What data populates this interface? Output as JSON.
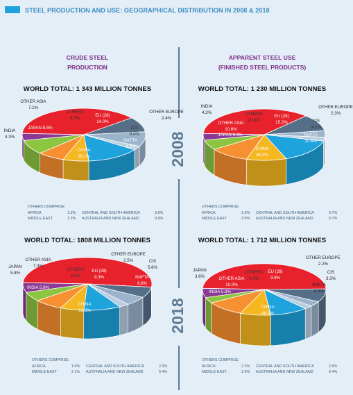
{
  "header": {
    "title": "STEEL PRODUCTION AND USE: GEOGRAPHICAL DISTRIBUTION IN 2008 & 2018"
  },
  "columns": {
    "crude": {
      "title_line1": "CRUDE STEEL",
      "title_line2": "PRODUCTION"
    },
    "use": {
      "title_line1": "APPARENT STEEL USE",
      "title_line2": "(FINISHED STEEL PRODUCTS)"
    }
  },
  "years": {
    "y2008": "2008",
    "y2018": "2018"
  },
  "colors": {
    "china": "#e8222c",
    "eu": "#1ea3dc",
    "others": "#f6b820",
    "other_asia": "#f79030",
    "japan": "#8cc540",
    "india": "#8b3a93",
    "other_europe": "#b8cde0",
    "cis": "#9bb4cc",
    "nafta": "#566f88",
    "title_purple": "#7a2a8a",
    "bg": "#e4eef6"
  },
  "chart_data": [
    {
      "type": "pie",
      "id": "crude2008",
      "title": "WORLD TOTAL: 1 343 MILLION TONNES",
      "slices": [
        {
          "name": "CHINA",
          "value": 38.1,
          "label": "38.1%"
        },
        {
          "name": "NAFTA",
          "value": 9.2,
          "label": "9.2%"
        },
        {
          "name": "CIS",
          "value": 9.0,
          "label": "9.0%"
        },
        {
          "name": "OTHER EUROPE",
          "value": 2.4,
          "label": "2.4%"
        },
        {
          "name": "EU (28)",
          "value": 14.0,
          "label": "14.0%"
        },
        {
          "name": "OTHERS",
          "value": 6.7,
          "label": "6.7%"
        },
        {
          "name": "OTHER ASIA",
          "value": 7.1,
          "label": "7.1%"
        },
        {
          "name": "JAPAN",
          "value": 8.8,
          "label": "8.8%"
        },
        {
          "name": "INDIA",
          "value": 4.3,
          "label": "4.3%"
        }
      ],
      "others_comprise": {
        "title": "OTHERS COMPRISE:",
        "rows": [
          {
            "a": "AFRICA",
            "av": "1.3%",
            "b": "CENTRAL AND SOUTH AMERICA",
            "bv": "3.6%"
          },
          {
            "a": "MIDDLE EAST",
            "av": "1.2%",
            "b": "AUSTRALIA AND NEW ZEALAND",
            "bv": "0.6%"
          }
        ]
      }
    },
    {
      "type": "pie",
      "id": "use2008",
      "title": "WORLD TOTAL: 1 230 MILLION TONNES",
      "slices": [
        {
          "name": "CHINA",
          "value": 36.3,
          "label": "36.3%"
        },
        {
          "name": "NAFTA",
          "value": 10.6,
          "label": "10.6%"
        },
        {
          "name": "CIS",
          "value": 4.1,
          "label": "4.1%"
        },
        {
          "name": "OTHER EUROPE",
          "value": 2.3,
          "label": "2.3%"
        },
        {
          "name": "EU (28)",
          "value": 15.2,
          "label": "15.2%"
        },
        {
          "name": "OTHERS",
          "value": 10.6,
          "label": "10.6%"
        },
        {
          "name": "OTHER ASIA",
          "value": 10.6,
          "label": "10.6%"
        },
        {
          "name": "JAPAN",
          "value": 6.3,
          "label": "6.3%"
        },
        {
          "name": "INDIA",
          "value": 4.2,
          "label": "4.2%"
        }
      ],
      "others_comprise": {
        "title": "OTHERS COMPRISE:",
        "rows": [
          {
            "a": "AFRICA",
            "av": "2.3%",
            "b": "CENTRAL AND SOUTH AMERICA",
            "bv": "3.7%"
          },
          {
            "a": "MIDDLE EAST",
            "av": "3.9%",
            "b": "AUSTRALIA AND NEW ZEALAND",
            "bv": "0.7%"
          }
        ]
      }
    },
    {
      "type": "pie",
      "id": "crude2018",
      "title": "WORLD TOTAL: 1808 MILLION TONNES",
      "slices": [
        {
          "name": "CHINA",
          "value": 51.3,
          "label": "51.3%"
        },
        {
          "name": "NAFTA",
          "value": 6.6,
          "label": "6.6%"
        },
        {
          "name": "CIS",
          "value": 5.6,
          "label": "5.6%"
        },
        {
          "name": "OTHER EUROPE",
          "value": 2.5,
          "label": "2.5%"
        },
        {
          "name": "EU (28)",
          "value": 9.3,
          "label": "9.3%"
        },
        {
          "name": "OTHERS",
          "value": 5.9,
          "label": "5.9%"
        },
        {
          "name": "OTHER ASIA",
          "value": 7.3,
          "label": "7.3%"
        },
        {
          "name": "JAPAN",
          "value": 5.8,
          "label": "5.8%"
        },
        {
          "name": "INDIA",
          "value": 5.9,
          "label": "5.9%"
        }
      ],
      "others_comprise": {
        "title": "OTHERS COMPRISE:",
        "rows": [
          {
            "a": "AFRICA",
            "av": "1.0%",
            "b": "CENTRAL AND SOUTH AMERICA",
            "bv": "2.3%"
          },
          {
            "a": "MIDDLE EAST",
            "av": "2.1%",
            "b": "AUSTRALIA AND NEW ZEALAND",
            "bv": "0.4%"
          }
        ]
      }
    },
    {
      "type": "pie",
      "id": "use2018",
      "title": "WORLD TOTAL: 1 712 MILLION TONNES",
      "slices": [
        {
          "name": "CHINA",
          "value": 48.8,
          "label": "48.8%"
        },
        {
          "name": "NAFTA",
          "value": 8.3,
          "label": "8.3%"
        },
        {
          "name": "CIS",
          "value": 3.3,
          "label": "3.3%"
        },
        {
          "name": "OTHER EUROPE",
          "value": 2.2,
          "label": "2.2%"
        },
        {
          "name": "EU (28)",
          "value": 9.9,
          "label": "9.9%"
        },
        {
          "name": "OTHERS",
          "value": 8.0,
          "label": "8.0%"
        },
        {
          "name": "OTHER ASIA",
          "value": 10.0,
          "label": "10.0%"
        },
        {
          "name": "JAPAN",
          "value": 3.6,
          "label": "3.6%"
        },
        {
          "name": "INDIA",
          "value": 5.8,
          "label": "5.8%"
        }
      ],
      "others_comprise": {
        "title": "OTHERS COMPRISE:",
        "rows": [
          {
            "a": "AFRICA",
            "av": "2.2%",
            "b": "CENTRAL AND SOUTH AMERICA",
            "bv": "2.6%"
          },
          {
            "a": "MIDDLE EAST",
            "av": "2.9%",
            "b": "AUSTRALIA AND NEW ZEALAND",
            "bv": "0.4%"
          }
        ]
      }
    }
  ]
}
